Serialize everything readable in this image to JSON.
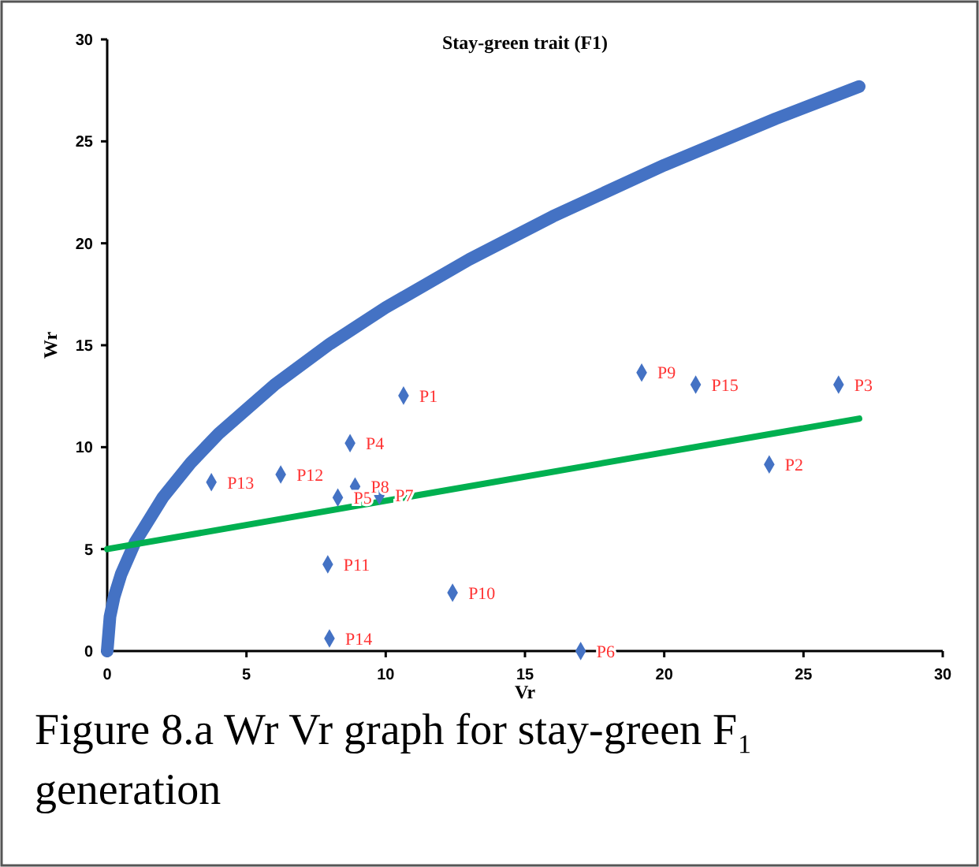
{
  "chart_data": {
    "type": "scatter",
    "title": "Stay-green trait (F1)",
    "xlabel": "Vr",
    "ylabel": "Wr",
    "xlim": [
      0,
      30
    ],
    "ylim": [
      0,
      30
    ],
    "xticks": [
      0,
      5,
      10,
      15,
      20,
      25,
      30
    ],
    "yticks": [
      0,
      5,
      10,
      15,
      20,
      25,
      30
    ],
    "grid": false,
    "marker": "diamond",
    "series": [
      {
        "type": "line",
        "marker": "none",
        "color": "#4472c4",
        "x": [
          0,
          0.1,
          0.25,
          0.5,
          1,
          2,
          3,
          4,
          6,
          8,
          10,
          13,
          16,
          20,
          24,
          27
        ],
        "values": [
          0,
          1.69,
          2.66,
          3.77,
          5.33,
          7.54,
          9.23,
          10.66,
          13.05,
          15.07,
          16.85,
          19.21,
          21.32,
          23.83,
          26.11,
          27.69
        ]
      },
      {
        "type": "line",
        "marker": "none",
        "color": "#00b050",
        "x": [
          0,
          27
        ],
        "values": [
          5,
          11.4
        ]
      },
      {
        "color": "#4472c4",
        "x": [
          10.64,
          23.77,
          26.26,
          8.72,
          8.28,
          17.0,
          9.77,
          8.9,
          19.19,
          12.4,
          7.92,
          6.23,
          3.74,
          7.98,
          21.13
        ],
        "values": [
          12.53,
          9.15,
          13.07,
          10.2,
          7.53,
          0,
          7.63,
          8.07,
          13.66,
          2.86,
          4.25,
          8.66,
          8.28,
          0.62,
          13.07
        ]
      }
    ],
    "annotations": [
      {
        "text": "P1",
        "x": 10.64,
        "y": 12.53
      },
      {
        "text": "P2",
        "x": 23.77,
        "y": 9.15
      },
      {
        "text": "P3",
        "x": 26.26,
        "y": 13.07
      },
      {
        "text": "P4",
        "x": 8.72,
        "y": 10.2
      },
      {
        "text": "P5",
        "x": 8.28,
        "y": 7.53
      },
      {
        "text": "P6",
        "x": 17.0,
        "y": 0
      },
      {
        "text": "P7",
        "x": 9.77,
        "y": 7.63
      },
      {
        "text": "P8",
        "x": 8.9,
        "y": 8.07
      },
      {
        "text": "P9",
        "x": 19.19,
        "y": 13.66
      },
      {
        "text": "P10",
        "x": 12.4,
        "y": 2.86
      },
      {
        "text": "P11",
        "x": 7.92,
        "y": 4.25
      },
      {
        "text": "P12",
        "x": 6.23,
        "y": 8.66
      },
      {
        "text": "P13",
        "x": 3.74,
        "y": 8.28
      },
      {
        "text": "P14",
        "x": 7.98,
        "y": 0.62
      },
      {
        "text": "P15",
        "x": 21.13,
        "y": 13.07
      },
      "Figure 8.a Wr Vr graph for stay-green F₁ generation"
    ]
  }
}
